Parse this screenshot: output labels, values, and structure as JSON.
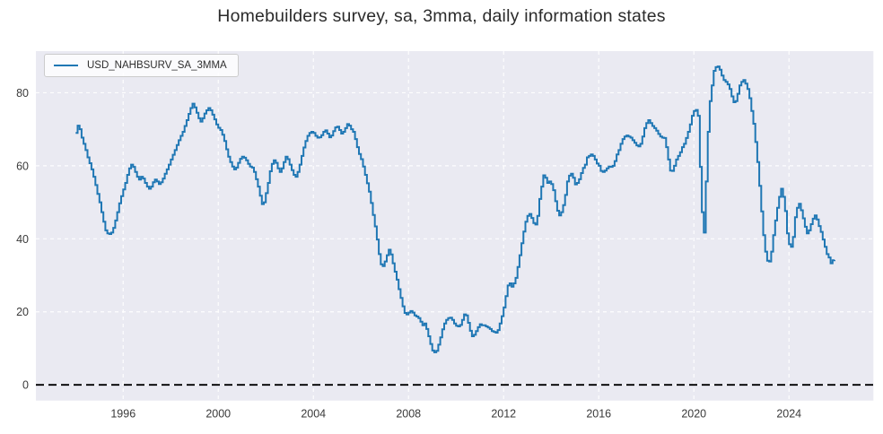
{
  "figure": {
    "title": "Homebuilders survey, sa, 3mma, daily information states"
  },
  "legend": {
    "label": "USD_NAHBSURV_SA_3MMA"
  },
  "colors": {
    "line": "#1f77b4",
    "plot_bg": "#eaeaf2",
    "grid": "#ffffff",
    "zero_line": "#000000",
    "tick_text": "#3a3a3a"
  },
  "chart_data": {
    "type": "line",
    "title": "Homebuilders survey, sa, 3mma, daily information states",
    "xlabel": "",
    "ylabel": "",
    "xticks": [
      1996,
      2000,
      2004,
      2008,
      2012,
      2016,
      2020,
      2024
    ],
    "yticks": [
      0,
      20,
      40,
      60,
      80
    ],
    "xlim": [
      1992.33,
      2027.55
    ],
    "ylim": [
      -4.3,
      91.4
    ],
    "grid": true,
    "grid_style": "dashed-white",
    "legend_position": "upper-left",
    "line_style": "step-after",
    "zero_line": {
      "value": 0,
      "style": "dashed",
      "color": "#000000"
    },
    "series": [
      {
        "name": "USD_NAHBSURV_SA_3MMA",
        "color": "#1f77b4",
        "start_year": 1994,
        "frequency": "monthly",
        "values": [
          69.0,
          71.0,
          70.0,
          67.7,
          66.0,
          64.3,
          62.3,
          60.7,
          59.0,
          57.0,
          54.7,
          52.3,
          50.0,
          47.3,
          44.7,
          42.3,
          41.5,
          41.3,
          41.7,
          43.0,
          45.0,
          47.3,
          49.7,
          51.7,
          53.5,
          55.3,
          57.5,
          59.3,
          60.3,
          59.7,
          58.3,
          57.0,
          56.2,
          57.0,
          56.5,
          55.3,
          54.3,
          53.7,
          54.3,
          55.5,
          56.2,
          55.7,
          55.0,
          55.5,
          56.5,
          57.8,
          59.0,
          60.3,
          61.7,
          63.0,
          64.3,
          65.7,
          67.0,
          68.2,
          69.3,
          70.9,
          72.5,
          74.2,
          75.8,
          77.0,
          76.0,
          74.5,
          73.0,
          72.1,
          73.0,
          74.3,
          75.2,
          75.8,
          75.2,
          74.0,
          72.7,
          71.3,
          70.4,
          69.8,
          68.5,
          66.8,
          64.5,
          62.5,
          61.0,
          59.8,
          59.0,
          59.5,
          60.8,
          61.9,
          62.5,
          62.2,
          61.5,
          60.5,
          59.8,
          59.5,
          58.3,
          56.3,
          54.3,
          51.8,
          49.5,
          50.0,
          52.5,
          55.3,
          58.5,
          60.5,
          61.5,
          60.8,
          59.3,
          58.3,
          59.3,
          61.0,
          62.5,
          61.8,
          60.3,
          58.8,
          57.5,
          57.0,
          58.3,
          60.3,
          62.7,
          65.0,
          66.8,
          68.2,
          69.0,
          69.3,
          69.0,
          68.2,
          67.7,
          67.8,
          68.4,
          69.3,
          69.7,
          68.8,
          67.8,
          68.3,
          69.5,
          70.5,
          70.7,
          69.8,
          68.8,
          69.3,
          70.3,
          71.4,
          71.0,
          70.0,
          69.3,
          67.3,
          65.1,
          63.2,
          61.8,
          59.8,
          57.5,
          55.2,
          52.9,
          49.8,
          46.5,
          43.4,
          39.8,
          35.8,
          33.0,
          32.5,
          33.8,
          35.5,
          37.0,
          35.7,
          33.3,
          31.0,
          28.8,
          26.2,
          23.8,
          21.5,
          19.7,
          19.3,
          19.8,
          20.2,
          19.8,
          19.0,
          18.7,
          18.3,
          17.3,
          16.3,
          16.8,
          15.3,
          13.3,
          11.2,
          9.4,
          8.9,
          9.3,
          11.0,
          13.0,
          15.2,
          16.8,
          17.8,
          18.3,
          18.4,
          17.8,
          16.8,
          16.2,
          16.0,
          16.4,
          17.8,
          19.3,
          19.0,
          17.0,
          14.8,
          13.3,
          13.7,
          14.7,
          15.8,
          16.6,
          16.3,
          16.3,
          16.0,
          15.7,
          15.3,
          14.7,
          14.5,
          14.3,
          15.0,
          16.8,
          18.8,
          21.2,
          24.3,
          27.2,
          27.8,
          26.9,
          27.8,
          29.3,
          32.3,
          35.5,
          38.8,
          42.0,
          44.7,
          46.3,
          46.8,
          45.7,
          44.3,
          43.9,
          46.3,
          50.9,
          54.3,
          57.4,
          56.7,
          55.3,
          55.7,
          55.0,
          53.3,
          50.3,
          47.7,
          46.4,
          47.3,
          49.2,
          52.0,
          55.7,
          57.3,
          57.8,
          56.7,
          54.9,
          55.3,
          56.3,
          58.0,
          59.4,
          60.3,
          62.3,
          62.7,
          63.1,
          62.7,
          61.7,
          60.6,
          60.0,
          58.6,
          58.3,
          58.7,
          59.3,
          59.8,
          59.7,
          60.0,
          61.3,
          63.1,
          64.3,
          66.0,
          67.3,
          68.0,
          68.3,
          68.0,
          67.7,
          67.0,
          66.3,
          65.6,
          65.3,
          66.0,
          68.0,
          70.3,
          71.7,
          72.5,
          71.7,
          70.9,
          70.3,
          69.6,
          68.7,
          68.0,
          67.7,
          67.6,
          65.1,
          61.7,
          58.7,
          58.6,
          60.0,
          61.7,
          62.7,
          63.7,
          65.1,
          66.0,
          67.6,
          69.3,
          71.3,
          73.7,
          75.0,
          75.3,
          73.7,
          59.7,
          47.3,
          41.7,
          55.7,
          69.3,
          77.7,
          82.0,
          86.0,
          87.0,
          87.2,
          86.3,
          84.7,
          83.5,
          83.0,
          82.3,
          81.0,
          79.0,
          77.4,
          77.7,
          79.7,
          82.0,
          83.0,
          83.5,
          82.5,
          81.0,
          78.5,
          75.0,
          71.5,
          66.5,
          61.0,
          54.5,
          47.5,
          41.0,
          36.5,
          34.0,
          33.8,
          36.5,
          41.0,
          45.0,
          48.5,
          51.5,
          53.7,
          51.5,
          47.6,
          41.5,
          38.5,
          37.8,
          40.5,
          45.9,
          48.5,
          49.6,
          47.8,
          45.6,
          43.3,
          41.5,
          42.3,
          44.0,
          45.5,
          46.4,
          45.3,
          43.5,
          41.9,
          39.8,
          37.8,
          35.8,
          34.9,
          33.3,
          34.1,
          34.2
        ]
      }
    ]
  }
}
